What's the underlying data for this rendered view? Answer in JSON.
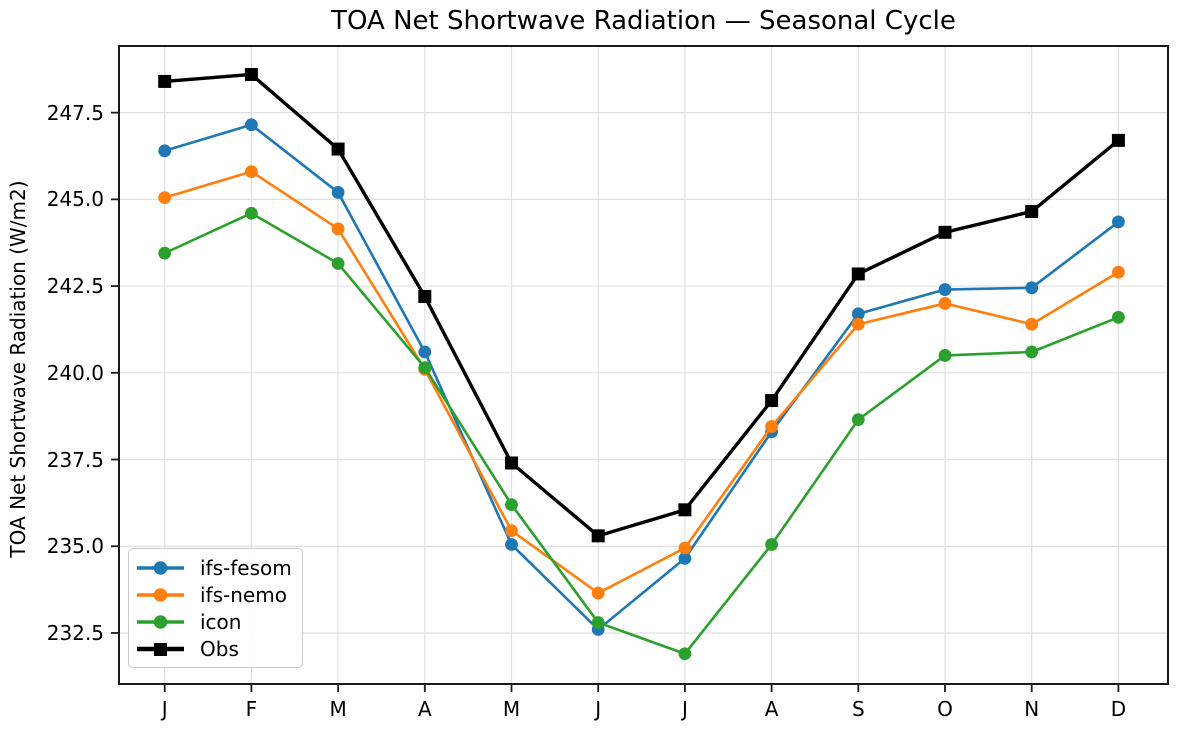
{
  "title": "TOA Net Shortwave Radiation — Seasonal Cycle",
  "chart_data": {
    "type": "line",
    "title": "TOA Net Shortwave Radiation — Seasonal Cycle",
    "xlabel": "",
    "ylabel": "TOA Net Shortwave Radiation (W/m2)",
    "categories": [
      "J",
      "F",
      "M",
      "A",
      "M",
      "J",
      "J",
      "A",
      "S",
      "O",
      "N",
      "D"
    ],
    "y_ticks": [
      232.5,
      235.0,
      237.5,
      240.0,
      242.5,
      245.0,
      247.5
    ],
    "y_tick_labels": [
      "232.5",
      "235.0",
      "237.5",
      "240.0",
      "242.5",
      "245.0",
      "247.5"
    ],
    "ylim": [
      231.0,
      249.45
    ],
    "grid": true,
    "legend_position": "lower-left",
    "series": [
      {
        "name": "ifs-fesom",
        "color": "#1f77b4",
        "marker": "circle",
        "line_width": 2.6,
        "values": [
          246.4,
          247.15,
          245.2,
          240.6,
          235.05,
          232.6,
          234.65,
          238.3,
          241.7,
          242.4,
          242.45,
          244.35
        ]
      },
      {
        "name": "ifs-nemo",
        "color": "#ff7f0e",
        "marker": "circle",
        "line_width": 2.6,
        "values": [
          245.05,
          245.8,
          244.15,
          240.1,
          235.45,
          233.65,
          234.95,
          238.45,
          241.4,
          242.0,
          241.4,
          242.9
        ]
      },
      {
        "name": "icon",
        "color": "#2ca02c",
        "marker": "circle",
        "line_width": 2.6,
        "values": [
          243.45,
          244.6,
          243.15,
          240.15,
          236.2,
          232.8,
          231.9,
          235.05,
          238.65,
          240.5,
          240.6,
          241.6
        ]
      },
      {
        "name": "Obs",
        "color": "#000000",
        "marker": "square",
        "line_width": 3.4,
        "values": [
          248.4,
          248.6,
          246.45,
          242.2,
          237.4,
          235.3,
          236.05,
          239.2,
          242.85,
          244.05,
          244.65,
          246.7
        ]
      }
    ],
    "style": {
      "grid_color": "#e0e0e0",
      "spine_color": "#1a1a1a",
      "tick_color": "#1a1a1a",
      "background": "#ffffff"
    }
  }
}
